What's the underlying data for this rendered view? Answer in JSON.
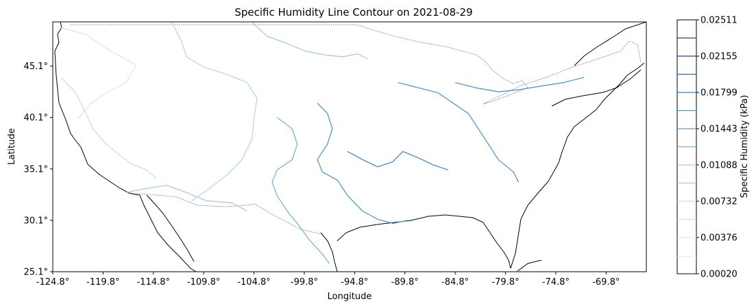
{
  "chart_data": {
    "type": "contour",
    "title": "Specific Humidity Line Contour on 2021-08-29",
    "xlabel": "Longitude",
    "ylabel": "Latitude",
    "xlim": [
      -124.8,
      -65.8
    ],
    "ylim": [
      25.1,
      49.4
    ],
    "xticks": [
      -124.8,
      -119.8,
      -114.8,
      -109.8,
      -104.8,
      -99.8,
      -94.8,
      -89.8,
      -84.8,
      -79.8,
      -74.8,
      -69.8
    ],
    "xtick_labels": [
      "-124.8°",
      "-119.8°",
      "-114.8°",
      "-109.8°",
      "-104.8°",
      "-99.8°",
      "-94.8°",
      "-89.8°",
      "-84.8°",
      "-79.8°",
      "-74.8°",
      "-69.8°"
    ],
    "yticks": [
      25.1,
      30.1,
      35.1,
      40.1,
      45.1
    ],
    "ytick_labels": [
      "25.1°",
      "30.1°",
      "35.1°",
      "40.1°",
      "45.1°"
    ],
    "colorbar": {
      "label": "Specific Humidity (kPa)",
      "range": [
        0.0002,
        0.02511
      ],
      "levels": [
        0.0002,
        0.0019,
        0.00376,
        0.00555,
        0.00732,
        0.0091,
        0.01088,
        0.01266,
        0.01443,
        0.01621,
        0.01799,
        0.01977,
        0.02155,
        0.02333,
        0.02511
      ],
      "tick_labels": [
        "0.00020",
        "0.00376",
        "0.00732",
        "0.01088",
        "0.01443",
        "0.01799",
        "0.02155",
        "0.02511"
      ],
      "colormap": "Blues"
    },
    "contours": [
      {
        "level": 0.00376,
        "color": "#d6e6f4",
        "points": [
          [
            -124.3,
            48.9
          ],
          [
            -121.5,
            48.2
          ],
          [
            -119.8,
            47.0
          ],
          [
            -118.0,
            46.0
          ],
          [
            -116.5,
            45.2
          ],
          [
            -117.5,
            43.5
          ],
          [
            -119.5,
            42.5
          ],
          [
            -121.0,
            41.5
          ],
          [
            -122.3,
            40.0
          ]
        ]
      },
      {
        "level": 0.00555,
        "color": "#c6dbef",
        "points": [
          [
            -124.0,
            44.0
          ],
          [
            -122.5,
            42.5
          ],
          [
            -121.5,
            40.5
          ],
          [
            -120.8,
            39.0
          ],
          [
            -119.5,
            37.5
          ],
          [
            -118.2,
            36.5
          ],
          [
            -117.0,
            35.6
          ],
          [
            -115.5,
            35.0
          ],
          [
            -114.5,
            34.2
          ]
        ]
      },
      {
        "level": 0.00732,
        "color": "#b3d3e8",
        "points": [
          [
            -113.0,
            49.4
          ],
          [
            -112.0,
            47.5
          ],
          [
            -111.5,
            46.0
          ],
          [
            -109.8,
            45.0
          ],
          [
            -107.5,
            44.3
          ],
          [
            -105.5,
            43.5
          ],
          [
            -104.5,
            42.0
          ],
          [
            -104.8,
            40.0
          ],
          [
            -105.0,
            38.0
          ],
          [
            -106.0,
            36.0
          ],
          [
            -107.5,
            34.5
          ],
          [
            -109.5,
            33.0
          ],
          [
            -111.0,
            32.0
          ]
        ]
      },
      {
        "level": 0.0091,
        "color": "#9ecae1",
        "points": [
          [
            -105.0,
            49.4
          ],
          [
            -103.5,
            48.0
          ],
          [
            -101.5,
            47.3
          ],
          [
            -99.8,
            46.6
          ],
          [
            -97.8,
            46.2
          ],
          [
            -96.0,
            46.0
          ],
          [
            -94.5,
            46.3
          ],
          [
            -93.5,
            45.8
          ]
        ]
      },
      {
        "level": 0.0091,
        "color": "#9ecae1",
        "points": [
          [
            -117.5,
            32.8
          ],
          [
            -115.5,
            33.2
          ],
          [
            -113.5,
            33.5
          ],
          [
            -111.5,
            32.8
          ],
          [
            -109.5,
            32.0
          ],
          [
            -107.0,
            31.8
          ],
          [
            -105.5,
            31.0
          ]
        ]
      },
      {
        "level": 0.01088,
        "color": "#6baed6",
        "points": [
          [
            -102.5,
            40.1
          ],
          [
            -101.0,
            39.0
          ],
          [
            -100.5,
            37.5
          ],
          [
            -101.0,
            36.0
          ],
          [
            -102.5,
            35.0
          ],
          [
            -103.0,
            33.8
          ],
          [
            -102.5,
            32.5
          ],
          [
            -101.5,
            31.0
          ],
          [
            -100.5,
            29.8
          ],
          [
            -99.3,
            28.2
          ],
          [
            -98.0,
            26.8
          ],
          [
            -97.3,
            25.9
          ]
        ]
      },
      {
        "level": 0.01266,
        "color": "#4292c6",
        "points": [
          [
            -98.5,
            41.5
          ],
          [
            -97.5,
            40.5
          ],
          [
            -97.0,
            39.0
          ],
          [
            -97.5,
            37.5
          ],
          [
            -98.5,
            36.0
          ],
          [
            -98.0,
            34.8
          ],
          [
            -96.5,
            34.0
          ],
          [
            -95.5,
            32.5
          ],
          [
            -94.0,
            31.0
          ],
          [
            -92.5,
            30.2
          ],
          [
            -91.0,
            29.8
          ],
          [
            -89.5,
            30.1
          ]
        ]
      },
      {
        "level": 0.01266,
        "color": "#4292c6",
        "points": [
          [
            -90.5,
            43.5
          ],
          [
            -88.5,
            43.0
          ],
          [
            -86.5,
            42.5
          ],
          [
            -85.0,
            41.5
          ],
          [
            -83.5,
            40.5
          ],
          [
            -82.5,
            39.0
          ],
          [
            -81.5,
            37.5
          ],
          [
            -80.5,
            36.0
          ],
          [
            -79.0,
            34.8
          ],
          [
            -78.5,
            33.8
          ]
        ]
      },
      {
        "level": 0.01266,
        "color": "#4292c6",
        "points": [
          [
            -84.8,
            43.5
          ],
          [
            -82.8,
            43.0
          ],
          [
            -80.5,
            42.6
          ],
          [
            -78.5,
            42.8
          ],
          [
            -76.0,
            43.2
          ],
          [
            -74.0,
            43.5
          ],
          [
            -72.0,
            44.0
          ]
        ]
      },
      {
        "level": 0.01443,
        "color": "#3a85c0",
        "points": [
          [
            -95.5,
            36.8
          ],
          [
            -94.0,
            36.0
          ],
          [
            -92.5,
            35.3
          ],
          [
            -91.0,
            35.8
          ],
          [
            -90.0,
            36.8
          ],
          [
            -88.5,
            36.2
          ],
          [
            -87.0,
            35.5
          ],
          [
            -85.5,
            35.0
          ]
        ]
      }
    ]
  }
}
